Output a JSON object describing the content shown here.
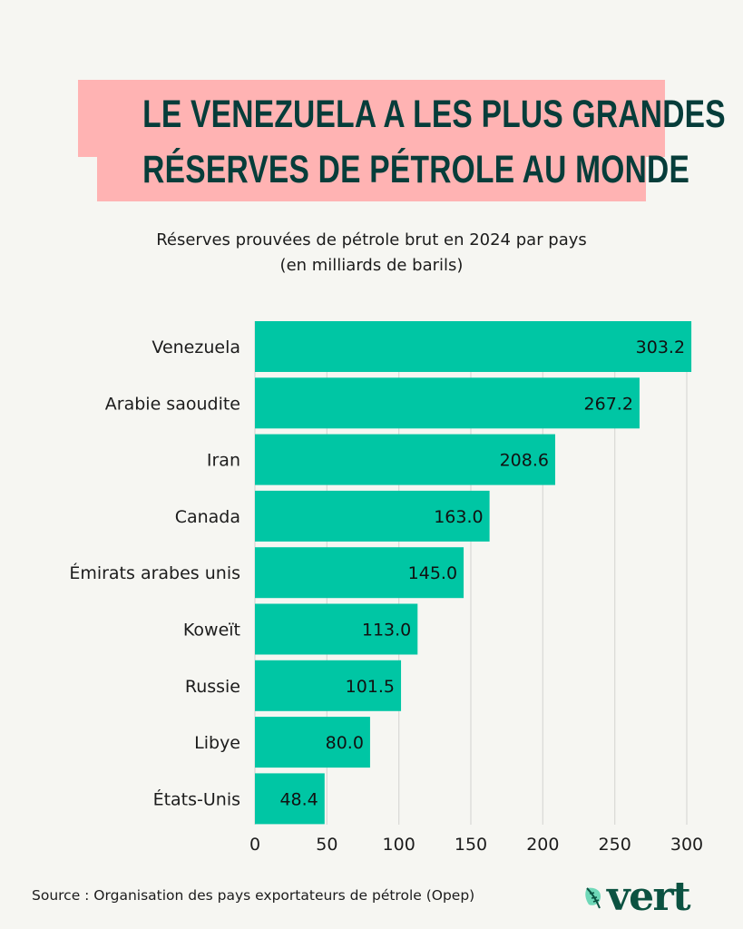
{
  "header": {
    "title_line1": "LE VENEZUELA A LES PLUS GRANDES",
    "title_line2": "RÉSERVES DE PÉTROLE AU MONDE",
    "subtitle_line1": "Réserves prouvées de pétrole brut en 2024 par pays",
    "subtitle_line2": "(en milliards de barils)"
  },
  "footer": {
    "source": "Source : Organisation des pays exportateurs de pétrole (Opep)",
    "logo_text": "vert",
    "logo_icon": "leaf-icon"
  },
  "colors": {
    "background": "#f6f6f2",
    "title_box": "#ffb3b3",
    "title_text": "#063d3a",
    "bar": "#00c6a4",
    "gridline": "#d9d9d6",
    "logo": "#0b5241"
  },
  "chart_data": {
    "type": "bar",
    "orientation": "horizontal",
    "title": "Réserves prouvées de pétrole brut en 2024 par pays",
    "subtitle": "(en milliards de barils)",
    "xlabel": "",
    "ylabel": "",
    "categories": [
      "Venezuela",
      "Arabie saoudite",
      "Iran",
      "Canada",
      "Émirats arabes unis",
      "Koweït",
      "Russie",
      "Libye",
      "États-Unis"
    ],
    "values": [
      303.2,
      267.2,
      208.6,
      163.0,
      145.0,
      113.0,
      101.5,
      80.0,
      48.4
    ],
    "value_labels": [
      "303.2",
      "267.2",
      "208.6",
      "163.0",
      "145.0",
      "113.0",
      "101.5",
      "80.0",
      "48.4"
    ],
    "xlim": [
      0,
      300
    ],
    "xticks": [
      0,
      50,
      100,
      150,
      200,
      250,
      300
    ],
    "xtick_labels": [
      "0",
      "50",
      "100",
      "150",
      "200",
      "250",
      "300"
    ],
    "grid": "vertical",
    "legend": "none"
  }
}
